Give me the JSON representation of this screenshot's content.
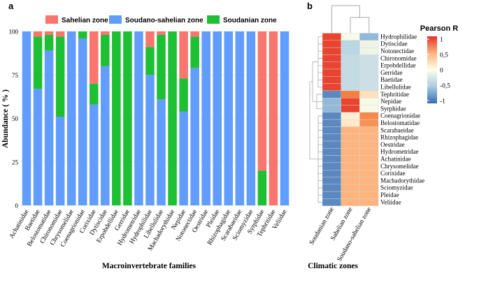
{
  "colors": {
    "sahelian": "#F8766D",
    "soudano_sahelian": "#619CFF",
    "soudanian": "#1DBF33",
    "grid": "#EBEBEB",
    "dendro": "#AAAAAA",
    "heat_low": "#3A6BB2",
    "heat_mid": "#FFFFE8",
    "heat_high": "#E4302A",
    "heat_peach": "#FDB47E",
    "heat_orange": "#F4803F",
    "heat_lightblue": "#C3DCE9",
    "heat_lightblue2": "#A8CCE2"
  },
  "chart_data": [
    {
      "panel_label": "a",
      "type": "bar",
      "stacked": true,
      "legend_position": "top",
      "legend": [
        "Sahelian zone",
        "Soudano-sahelian zone",
        "Soudanian zone"
      ],
      "xlabel": "Macroinvertebrate families",
      "ylabel": "Abundance ( % )",
      "ylim": [
        0,
        100
      ],
      "yticks": [
        0,
        25,
        50,
        75,
        100
      ],
      "categories": [
        "Achatinidae",
        "Baetidae",
        "Belostomatidae",
        "Chironomidae",
        "Chrysomelidae",
        "Coenagrionidae",
        "Corixidae",
        "Dytiscidae",
        "Erpobdellidae",
        "Gerridae",
        "Hydrometridae",
        "Hydrophilidae",
        "Libellulidae",
        "Machadorythidae",
        "Nepidae",
        "Notonectidae",
        "Oestridae",
        "Pleidae",
        "Rhizophagidae",
        "Scarabaeidae",
        "Sciomyzidae",
        "Syrphidae",
        "Tephritidae",
        "Veliidae"
      ],
      "series": [
        {
          "name": "Soudano-sahelian zone",
          "values": [
            100,
            67,
            89,
            51,
            100,
            96,
            58,
            80,
            0,
            0,
            100,
            75,
            61,
            0,
            54,
            79,
            100,
            100,
            100,
            100,
            100,
            0,
            0,
            100
          ]
        },
        {
          "name": "Soudanian zone",
          "values": [
            0,
            30,
            9,
            46,
            0,
            4,
            12,
            18,
            100,
            100,
            0,
            16,
            37,
            100,
            19,
            18,
            0,
            0,
            0,
            0,
            0,
            20,
            0,
            0
          ]
        },
        {
          "name": "Sahelian zone",
          "values": [
            0,
            3,
            2,
            3,
            0,
            0,
            30,
            2,
            0,
            0,
            0,
            9,
            2,
            0,
            27,
            3,
            0,
            0,
            0,
            0,
            0,
            80,
            100,
            0
          ]
        }
      ]
    },
    {
      "panel_label": "b",
      "type": "heatmap",
      "xlabel": "Climatic zones",
      "legend_title": "Pearson R",
      "legend_ticks": [
        "1",
        "0,5",
        "0",
        "-0,5",
        "-1"
      ],
      "legend_values": [
        1,
        0.5,
        0,
        -0.5,
        -1
      ],
      "columns": [
        "Soudanian zone",
        "Sahelian zone",
        "Soudano-sahelian zone"
      ],
      "rows": [
        "Hydrophilidae",
        "Dytiscidae",
        "Notonectidae",
        "Chironomidae",
        "Erpobdellidae",
        "Gerridae",
        "Baetidae",
        "Libellulidae",
        "Tephritidae",
        "Nepidae",
        "Syrphidae",
        "Coenagrionidae",
        "Belostomatidae",
        "Scarabaeidae",
        "Rhizophagidae",
        "Oestridae",
        "Hydrometridae",
        "Achatinidae",
        "Chrysomelidae",
        "Corixidae",
        "Machadorythidae",
        "Sciomyzidae",
        "Pleidae",
        "Veliidae"
      ],
      "values": [
        [
          0.95,
          -0.05,
          -0.6
        ],
        [
          0.95,
          -0.4,
          -0.1
        ],
        [
          0.95,
          -0.4,
          -0.1
        ],
        [
          0.95,
          -0.35,
          -0.3
        ],
        [
          0.95,
          -0.35,
          -0.3
        ],
        [
          0.95,
          -0.35,
          -0.3
        ],
        [
          0.95,
          -0.35,
          -0.3
        ],
        [
          0.95,
          -0.35,
          -0.3
        ],
        [
          -0.85,
          0.8,
          0.2
        ],
        [
          -0.6,
          0.95,
          -0.05
        ],
        [
          -0.6,
          0.95,
          -0.05
        ],
        [
          -0.85,
          0.1,
          0.75
        ],
        [
          -0.85,
          0.15,
          0.7
        ],
        [
          -0.85,
          0.5,
          0.5
        ],
        [
          -0.85,
          0.5,
          0.5
        ],
        [
          -0.85,
          0.5,
          0.5
        ],
        [
          -0.85,
          0.5,
          0.5
        ],
        [
          -0.85,
          0.5,
          0.5
        ],
        [
          -0.85,
          0.5,
          0.5
        ],
        [
          -0.85,
          0.5,
          0.5
        ],
        [
          -0.85,
          0.5,
          0.5
        ],
        [
          -0.85,
          0.5,
          0.5
        ],
        [
          -0.85,
          0.5,
          0.5
        ],
        [
          -0.85,
          0.5,
          0.5
        ]
      ]
    }
  ]
}
